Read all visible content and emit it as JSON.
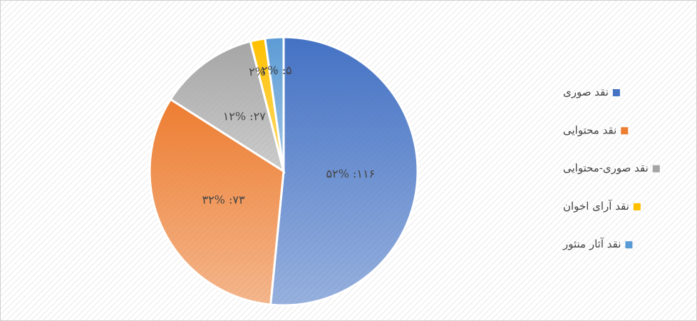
{
  "chart_data": {
    "type": "pie",
    "categories": [
      "نقد صوری",
      "نقد محتوایی",
      "نقد صوری-محتوایی",
      "نقد آرای اخوان",
      "نقد آثار منثور"
    ],
    "values": [
      116,
      73,
      27,
      4,
      5
    ],
    "value_labels": [
      "۱۱۶: ۵۲%",
      "۷۳: ۳۲%",
      "۲۷: ۱۲%",
      "۴: ۲%",
      "۵: ۲%"
    ],
    "colors": [
      "#4472c4",
      "#ed7d31",
      "#a5a5a5",
      "#ffc000",
      "#5b9bd5"
    ],
    "legend": "right"
  }
}
